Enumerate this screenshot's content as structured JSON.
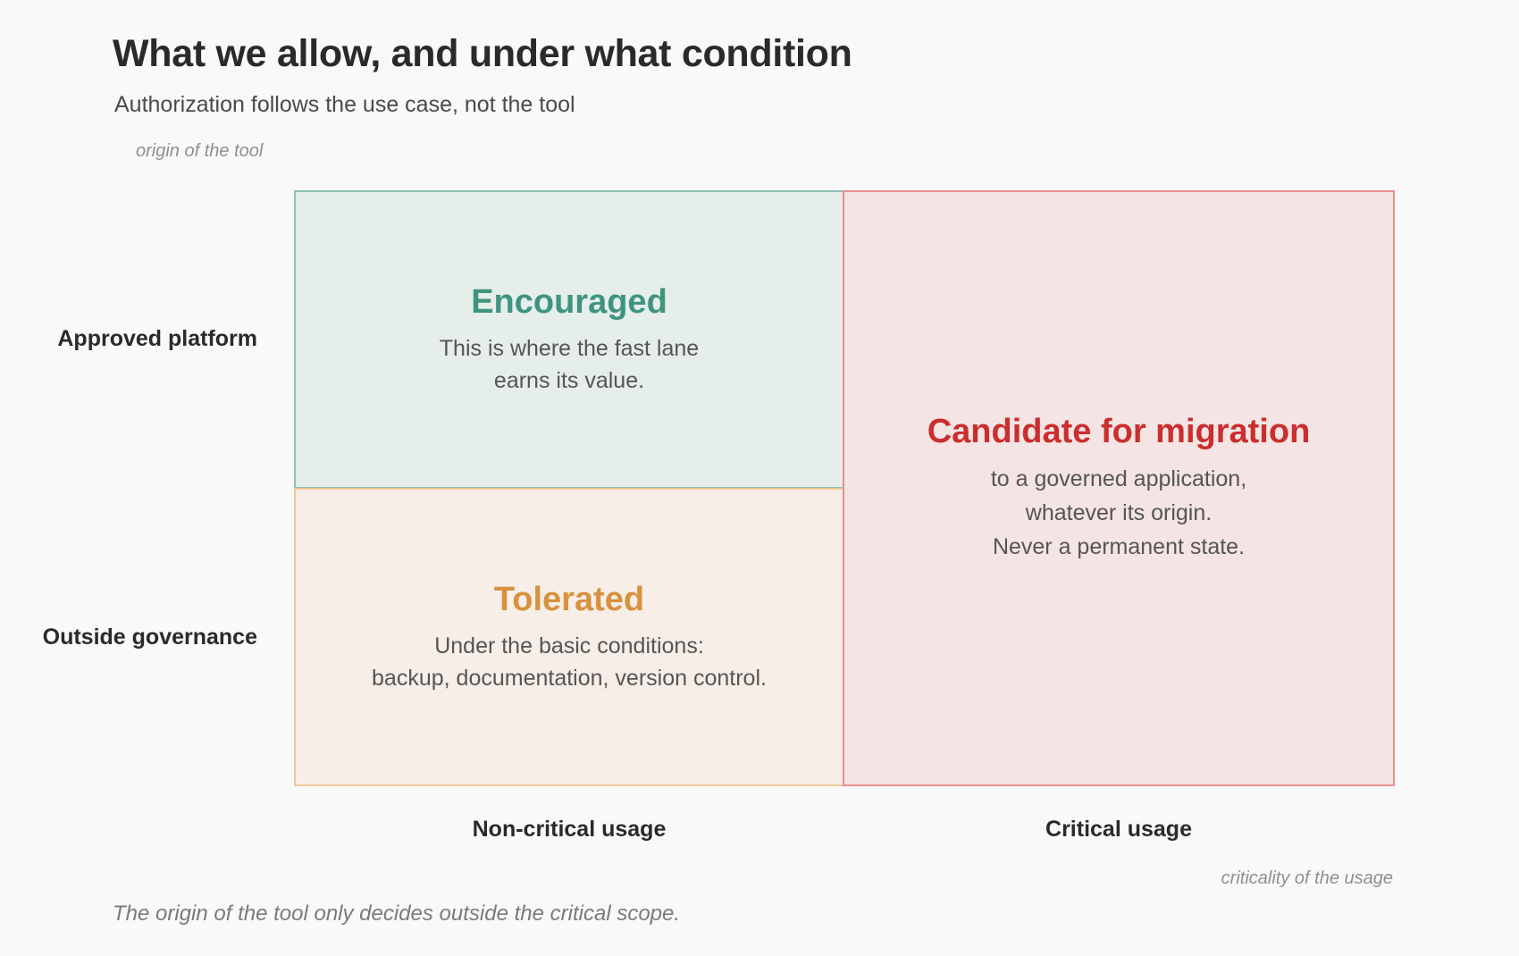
{
  "header": {
    "title": "What we allow, and under what condition",
    "subtitle": "Authorization follows the use case, not the tool"
  },
  "axes": {
    "y_caption": "origin of the tool",
    "x_caption": "criticality of the usage",
    "rows": [
      "Approved platform",
      "Outside governance"
    ],
    "columns": [
      "Non-critical usage",
      "Critical usage"
    ]
  },
  "quadrants": {
    "encouraged": {
      "title": "Encouraged",
      "lines": [
        "This is where the fast lane",
        "earns its value."
      ]
    },
    "tolerated": {
      "title": "Tolerated",
      "lines": [
        "Under the basic conditions:",
        "backup, documentation, version control."
      ]
    },
    "migration": {
      "title": "Candidate for migration",
      "lines": [
        "to a governed application,",
        "whatever its origin.",
        "Never a permanent state."
      ]
    }
  },
  "footer": {
    "note": "The origin of the tool only decides outside the critical scope."
  },
  "colors": {
    "encouraged": "#3f9480",
    "tolerated": "#d8913d",
    "migration": "#cb2e2e"
  }
}
